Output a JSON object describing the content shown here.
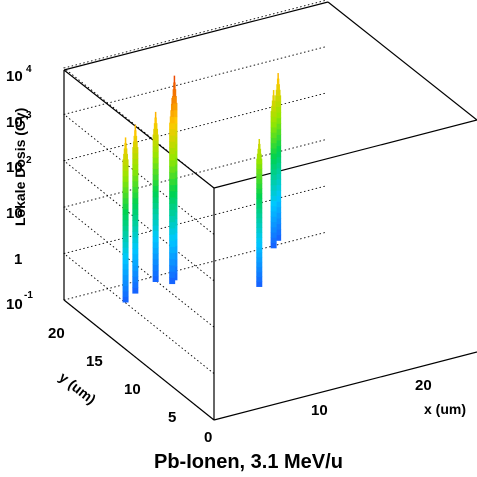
{
  "chart_data": {
    "type": "3d-lego",
    "title": "Pb-Ionen, 3.1 MeV/u",
    "zlabel": "Lokale Dosis (Gy)",
    "ylabel": "y (um)",
    "xlabel": "x (um)",
    "z_scale": "log",
    "z_range": [
      0.1,
      10000
    ],
    "z_ticks": [
      {
        "base": "10",
        "exp": "4"
      },
      {
        "base": "10",
        "exp": "3"
      },
      {
        "base": "10",
        "exp": "2"
      },
      {
        "base": "10",
        "exp": ""
      },
      {
        "base": "1",
        "exp": ""
      },
      {
        "base": "10",
        "exp": "-1"
      }
    ],
    "y_ticks": [
      "20",
      "15",
      "10",
      "5",
      "0"
    ],
    "x_ticks": [
      "10",
      "20"
    ],
    "grid": true,
    "peaks": [
      {
        "x": 3.0,
        "y": 20.0,
        "peak_dose": 700
      },
      {
        "x": 4.5,
        "y": 21.0,
        "peak_dose": 850
      },
      {
        "x": 7.0,
        "y": 22.0,
        "peak_dose": 900
      },
      {
        "x": 8.0,
        "y": 21.0,
        "peak_dose": 2000
      },
      {
        "x": 8.5,
        "y": 21.5,
        "peak_dose": 5000
      },
      {
        "x": 14.0,
        "y": 17.0,
        "peak_dose": 300
      },
      {
        "x": 18.5,
        "y": 22.5,
        "peak_dose": 500
      },
      {
        "x": 19.5,
        "y": 23.5,
        "peak_dose": 800
      }
    ]
  }
}
